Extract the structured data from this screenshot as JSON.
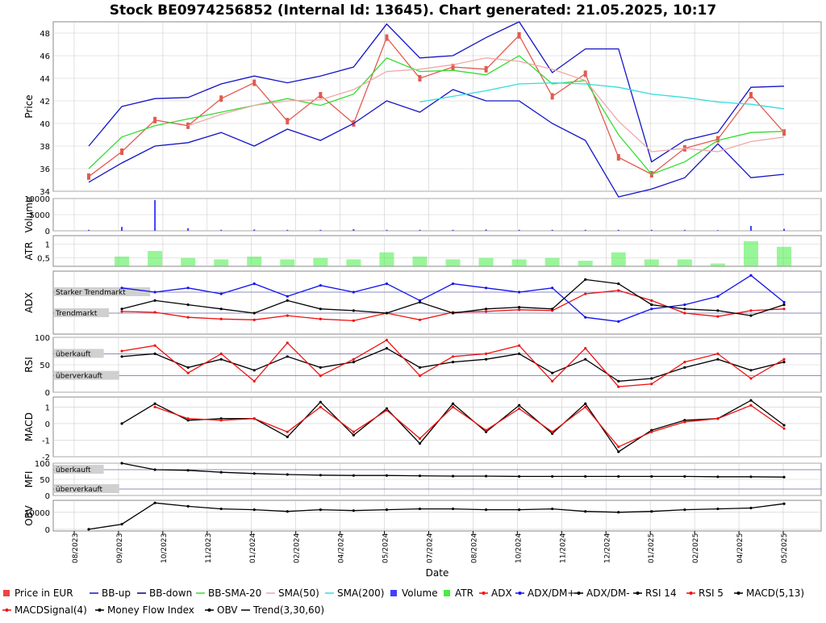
{
  "title": "Stock BE0974256852 (Internal Id: 13645). Chart generated: 21.05.2025, 10:17",
  "xlabel": "Date",
  "colors": {
    "price_up": "#e35a50",
    "bb": "#1414c8",
    "bb_sma": "#33dd33",
    "sma50": "#f0a8a8",
    "sma200": "#33dddd",
    "volume": "#4040ff",
    "atr": "#44ee44",
    "adx": "#ee1111",
    "dm_plus": "#1111ee",
    "dm_minus": "#000000",
    "grid": "#cccccc"
  },
  "x_ticks": [
    "08/2023",
    "09/2023",
    "10/2023",
    "11/2023",
    "01/2024",
    "02/2024",
    "04/2024",
    "05/2024",
    "07/2024",
    "08/2024",
    "10/2024",
    "11/2024",
    "12/2024",
    "01/2025",
    "02/2025",
    "04/2025",
    "05/2025"
  ],
  "chart_data": [
    {
      "type": "line",
      "panel": "price",
      "ylabel": "Price",
      "ylim": [
        34,
        49
      ],
      "yticks": [
        "34",
        "36",
        "38",
        "40",
        "42",
        "44",
        "46",
        "48"
      ],
      "series": [
        {
          "name": "Price in EUR",
          "values": [
            35.3,
            37.5,
            40.3,
            39.8,
            42.2,
            43.6,
            40.2,
            42.5,
            40.0,
            47.6,
            44.0,
            45.0,
            44.8,
            47.8,
            42.4,
            44.4,
            37.0,
            35.5,
            37.8,
            38.6,
            42.5,
            39.2
          ]
        },
        {
          "name": "BB-up",
          "values": [
            38.0,
            41.5,
            42.2,
            42.3,
            43.5,
            44.2,
            43.6,
            44.2,
            45.0,
            48.8,
            45.8,
            46.0,
            47.6,
            49.0,
            44.5,
            46.6,
            46.6,
            36.6,
            38.5,
            39.2,
            43.2,
            43.3
          ]
        },
        {
          "name": "BB-down",
          "values": [
            34.8,
            36.5,
            38.0,
            38.3,
            39.2,
            38.0,
            39.5,
            38.5,
            40.0,
            42.0,
            41.0,
            43.0,
            42.0,
            42.0,
            40.0,
            38.5,
            33.5,
            34.2,
            35.2,
            38.2,
            35.2,
            35.5
          ]
        },
        {
          "name": "BB-SMA-20",
          "values": [
            36.0,
            38.8,
            39.8,
            40.4,
            41.0,
            41.6,
            42.2,
            41.6,
            42.6,
            45.8,
            44.6,
            44.7,
            44.3,
            46.0,
            43.5,
            43.8,
            39.0,
            35.5,
            36.6,
            38.5,
            39.2,
            39.3
          ]
        },
        {
          "name": "SMA(50)",
          "values": [
            null,
            null,
            null,
            39.8,
            40.8,
            41.6,
            42.0,
            42.1,
            43.0,
            44.6,
            44.8,
            45.2,
            45.8,
            45.5,
            44.8,
            43.8,
            40.2,
            37.5,
            37.8,
            37.5,
            38.4,
            38.8
          ]
        },
        {
          "name": "SMA(200)",
          "values": [
            null,
            null,
            null,
            null,
            null,
            null,
            null,
            null,
            null,
            null,
            41.9,
            42.4,
            42.9,
            43.5,
            43.6,
            43.5,
            43.2,
            42.6,
            42.3,
            41.9,
            41.7,
            41.3
          ]
        }
      ]
    },
    {
      "type": "bar",
      "panel": "volume",
      "ylabel": "Volume",
      "ylim": [
        0,
        10000
      ],
      "yticks": [
        "0",
        "5000",
        "10000"
      ],
      "series": [
        {
          "name": "Volume",
          "values": [
            300,
            1200,
            9500,
            800,
            300,
            400,
            300,
            300,
            500,
            300,
            300,
            300,
            400,
            300,
            300,
            300,
            300,
            300,
            300,
            200,
            1500,
            600
          ]
        }
      ]
    },
    {
      "type": "bar",
      "panel": "atr",
      "ylabel": "ATR",
      "ylim": [
        0.2,
        1.3
      ],
      "yticks": [
        "0,5",
        "1"
      ],
      "series": [
        {
          "name": "ATR",
          "values": [
            null,
            0.55,
            0.75,
            0.5,
            0.45,
            0.55,
            0.45,
            0.5,
            0.45,
            0.7,
            0.55,
            0.45,
            0.5,
            0.45,
            0.5,
            0.4,
            0.7,
            0.45,
            0.45,
            0.3,
            1.1,
            0.9
          ]
        }
      ]
    },
    {
      "type": "line",
      "panel": "adx",
      "ylabel": "ADX",
      "ylim": [
        0,
        75
      ],
      "annotations": [
        {
          "label": "Starker Trendmarkt",
          "value": 50
        },
        {
          "label": "Trendmarkt",
          "value": 25
        }
      ],
      "series": [
        {
          "name": "ADX",
          "values": [
            null,
            27,
            26,
            20,
            18,
            17,
            22,
            18,
            16,
            25,
            17,
            26,
            27,
            29,
            28,
            48,
            52,
            40,
            25,
            21,
            28,
            30
          ]
        },
        {
          "name": "ADX/DM+",
          "values": [
            null,
            55,
            50,
            55,
            48,
            60,
            45,
            58,
            50,
            60,
            40,
            60,
            55,
            50,
            55,
            20,
            15,
            30,
            35,
            45,
            70,
            38
          ]
        },
        {
          "name": "ADX/DM-",
          "values": [
            null,
            30,
            40,
            35,
            30,
            25,
            40,
            30,
            28,
            25,
            38,
            25,
            30,
            32,
            30,
            65,
            60,
            35,
            30,
            28,
            22,
            35
          ]
        }
      ]
    },
    {
      "type": "line",
      "panel": "rsi",
      "ylabel": "RSI",
      "ylim": [
        0,
        100
      ],
      "yticks": [
        "0",
        "50",
        "100"
      ],
      "annotations": [
        {
          "label": "überkauft",
          "value": 70
        },
        {
          "label": "überverkauft",
          "value": 30
        }
      ],
      "series": [
        {
          "name": "RSI 14",
          "values": [
            null,
            65,
            70,
            45,
            60,
            40,
            65,
            45,
            55,
            80,
            45,
            55,
            60,
            70,
            35,
            60,
            20,
            25,
            45,
            60,
            40,
            55
          ]
        },
        {
          "name": "RSI 5",
          "values": [
            null,
            75,
            85,
            35,
            70,
            20,
            90,
            30,
            60,
            95,
            30,
            65,
            70,
            85,
            20,
            80,
            10,
            15,
            55,
            70,
            25,
            60
          ]
        }
      ]
    },
    {
      "type": "line",
      "panel": "macd",
      "ylabel": "MACD",
      "ylim": [
        -2,
        1.6
      ],
      "yticks": [
        "-2",
        "-1",
        "0",
        "1"
      ],
      "series": [
        {
          "name": "MACD(5,13)",
          "values": [
            null,
            0.0,
            1.2,
            0.2,
            0.3,
            0.3,
            -0.8,
            1.3,
            -0.7,
            0.9,
            -1.2,
            1.2,
            -0.5,
            1.1,
            -0.6,
            1.2,
            -1.7,
            -0.4,
            0.2,
            0.3,
            1.4,
            -0.1
          ]
        },
        {
          "name": "MACDSignal(4)",
          "values": [
            null,
            null,
            1.0,
            0.3,
            0.2,
            0.3,
            -0.5,
            1.0,
            -0.5,
            0.8,
            -0.9,
            1.0,
            -0.4,
            0.9,
            -0.5,
            1.0,
            -1.4,
            -0.5,
            0.1,
            0.3,
            1.1,
            -0.3
          ]
        }
      ]
    },
    {
      "type": "line",
      "panel": "mfi",
      "ylabel": "MFI",
      "ylim": [
        0,
        100
      ],
      "yticks": [
        "0",
        "50",
        "100"
      ],
      "annotations": [
        {
          "label": "überkauft",
          "value": 80
        },
        {
          "label": "überverkauft",
          "value": 20
        }
      ],
      "series": [
        {
          "name": "Money Flow Index",
          "values": [
            null,
            100,
            80,
            78,
            72,
            68,
            65,
            63,
            62,
            62,
            61,
            60,
            60,
            59,
            59,
            59,
            59,
            59,
            59,
            58,
            58,
            57
          ]
        }
      ]
    },
    {
      "type": "line",
      "panel": "obv",
      "ylabel": "OBV",
      "ylim": [
        -1000,
        17000
      ],
      "yticks": [
        "0",
        "10000"
      ],
      "series": [
        {
          "name": "OBV",
          "values": [
            0,
            3000,
            15500,
            13500,
            12000,
            11500,
            10500,
            11500,
            11000,
            11500,
            12000,
            12000,
            11500,
            11500,
            12000,
            10500,
            10000,
            10500,
            11500,
            12000,
            12500,
            15000
          ]
        },
        {
          "name": "Trend(3,30,60)",
          "values": [
            null,
            null,
            null,
            null,
            null,
            null,
            null,
            null,
            null,
            null,
            null,
            null,
            null,
            null,
            null,
            null,
            null,
            null,
            null,
            null,
            null,
            null
          ]
        }
      ]
    }
  ],
  "legend": [
    {
      "label": "Price in EUR",
      "marker": "box",
      "color": "#ee4444"
    },
    {
      "label": "BB-up",
      "marker": "line",
      "color": "#1414c8"
    },
    {
      "label": "BB-down",
      "marker": "line",
      "color": "#000080"
    },
    {
      "label": "BB-SMA-20",
      "marker": "line",
      "color": "#33dd33"
    },
    {
      "label": "SMA(50)",
      "marker": "line",
      "color": "#f0a8a8"
    },
    {
      "label": "SMA(200)",
      "marker": "line",
      "color": "#33dddd"
    },
    {
      "label": "Volume",
      "marker": "box",
      "color": "#4040ff"
    },
    {
      "label": "ATR",
      "marker": "box",
      "color": "#44ee44"
    },
    {
      "label": "ADX",
      "marker": "dotline",
      "color": "#ee1111"
    },
    {
      "label": "ADX/DM+",
      "marker": "dotline",
      "color": "#1111ee"
    },
    {
      "label": "ADX/DM-",
      "marker": "dotline",
      "color": "#000000"
    },
    {
      "label": "RSI 14",
      "marker": "dotline",
      "color": "#000000"
    },
    {
      "label": "RSI 5",
      "marker": "dotline",
      "color": "#ee1111"
    },
    {
      "label": "MACD(5,13)",
      "marker": "dotline",
      "color": "#000000"
    },
    {
      "label": "MACDSignal(4)",
      "marker": "dotline",
      "color": "#ee1111"
    },
    {
      "label": "Money Flow Index",
      "marker": "dotline",
      "color": "#000000"
    },
    {
      "label": "OBV",
      "marker": "dotline",
      "color": "#000000"
    },
    {
      "label": "Trend(3,30,60)",
      "marker": "line",
      "color": "#000000"
    }
  ]
}
